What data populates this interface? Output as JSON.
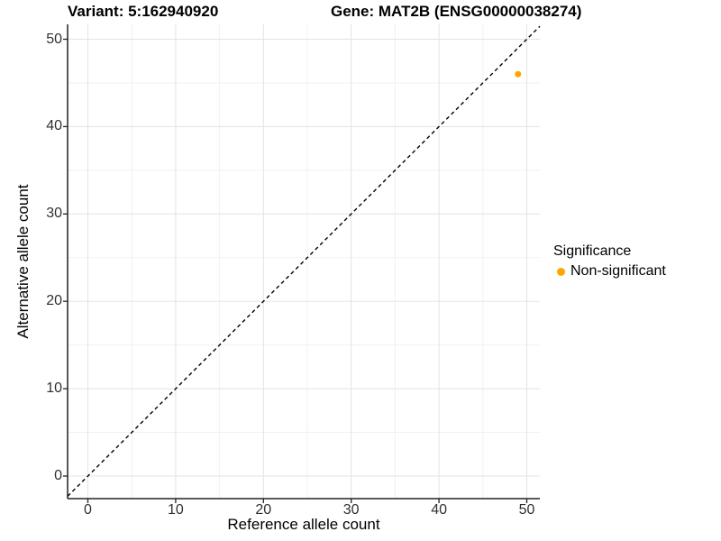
{
  "header": {
    "variant_title": "Variant: 5:162940920",
    "gene_title": "Gene: MAT2B (ENSG00000038274)"
  },
  "legend": {
    "title": "Significance",
    "items": [
      {
        "label": "Non-significant",
        "color": "#FFA500",
        "marker": "dot-icon"
      }
    ]
  },
  "colors": {
    "point": "#FFA500",
    "grid_major": "#e3e3e3",
    "grid_minor": "#f1f1f1",
    "axis_line": "#222222",
    "tick_label": "#303030",
    "reference_line": "#000000",
    "background": "#ffffff"
  },
  "chart_data": {
    "type": "scatter",
    "title": "Variant: 5:162940920    Gene: MAT2B (ENSG00000038274)",
    "xlabel": "Reference allele count",
    "ylabel": "Alternative allele count",
    "xlim": [
      0,
      50
    ],
    "ylim": [
      0,
      50
    ],
    "x_ticks": [
      0,
      10,
      20,
      30,
      40,
      50
    ],
    "y_ticks": [
      0,
      10,
      20,
      30,
      40,
      50
    ],
    "grid": true,
    "minor_gridlines": true,
    "legend_title": "Significance",
    "legend_position": "right",
    "series": [
      {
        "name": "Non-significant",
        "color": "#FFA500",
        "marker": "circle",
        "points": [
          {
            "x": 49,
            "y": 46
          }
        ]
      }
    ],
    "reference_line": {
      "kind": "identity y = x",
      "style": "dashed",
      "color": "#000000"
    }
  }
}
